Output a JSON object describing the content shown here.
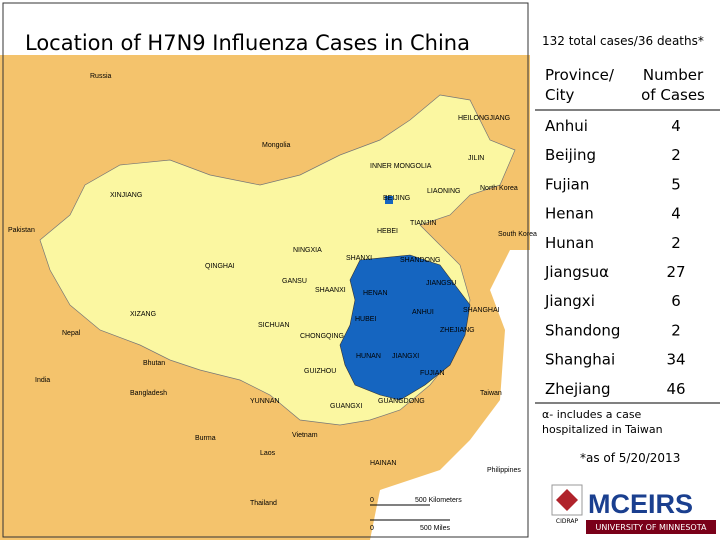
{
  "header": {
    "title": "Location of H7N9 Influenza Cases in China",
    "summary": "132 total cases/36 deaths*"
  },
  "map": {
    "labels": [
      "Russia",
      "HEILONGJIANG",
      "Mongolia",
      "JILIN",
      "INNER MONGOLIA",
      "LIAONING",
      "North Korea",
      "XINJIANG",
      "BEIJING",
      "TIANJIN",
      "HEBEI",
      "South Korea",
      "Pakistan",
      "NINGXIA",
      "SHANXI",
      "SHANDONG",
      "QINGHAI",
      "GANSU",
      "JIANGSU",
      "SHAANXI",
      "HENAN",
      "XIZANG",
      "HUBEI",
      "ANHUI",
      "SHANGHAI",
      "Nepal",
      "SICHUAN",
      "CHONGQING",
      "ZHEJIANG",
      "Bhutan",
      "HUNAN",
      "JIANGXI",
      "India",
      "GUIZHOU",
      "FUJIAN",
      "Bangladesh",
      "YUNNAN",
      "GUANGXI",
      "GUANGDONG",
      "Taiwan",
      "Burma",
      "Vietnam",
      "Laos",
      "HAINAN",
      "Philippines",
      "Thailand"
    ],
    "scale": {
      "zero_km": "0",
      "km": "500 Kilometers",
      "zero_mi": "0",
      "mi": "500 Miles"
    }
  },
  "table": {
    "headers": [
      "Province/ City",
      "Number of Cases"
    ],
    "rows": [
      [
        "Anhui",
        "4"
      ],
      [
        "Beijing",
        "2"
      ],
      [
        "Fujian",
        "5"
      ],
      [
        "Henan",
        "4"
      ],
      [
        "Hunan",
        "2"
      ],
      [
        "Jiangsuα",
        "27"
      ],
      [
        "Jiangxi",
        "6"
      ],
      [
        "Shandong",
        "2"
      ],
      [
        "Shanghai",
        "34"
      ],
      [
        "Zhejiang",
        "46"
      ]
    ]
  },
  "notes": {
    "alpha": "α- includes a case hospitalized in Taiwan",
    "asof": "*as of 5/20/2013"
  },
  "logo": {
    "name": "MCEIRS",
    "badge": "CIDRAP",
    "university": "UNIVERSITY OF MINNESOTA"
  }
}
